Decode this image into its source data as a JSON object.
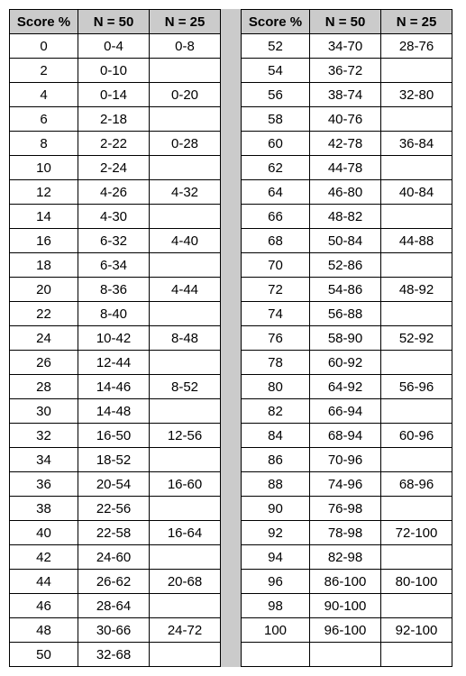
{
  "headers": {
    "score": "Score %",
    "n50": "N = 50",
    "n25": "N = 25"
  },
  "left": [
    {
      "s": "0",
      "a": "0-4",
      "b": "0-8"
    },
    {
      "s": "2",
      "a": "0-10",
      "b": ""
    },
    {
      "s": "4",
      "a": "0-14",
      "b": "0-20"
    },
    {
      "s": "6",
      "a": "2-18",
      "b": ""
    },
    {
      "s": "8",
      "a": "2-22",
      "b": "0-28"
    },
    {
      "s": "10",
      "a": "2-24",
      "b": ""
    },
    {
      "s": "12",
      "a": "4-26",
      "b": "4-32"
    },
    {
      "s": "14",
      "a": "4-30",
      "b": ""
    },
    {
      "s": "16",
      "a": "6-32",
      "b": "4-40"
    },
    {
      "s": "18",
      "a": "6-34",
      "b": ""
    },
    {
      "s": "20",
      "a": "8-36",
      "b": "4-44"
    },
    {
      "s": "22",
      "a": "8-40",
      "b": ""
    },
    {
      "s": "24",
      "a": "10-42",
      "b": "8-48"
    },
    {
      "s": "26",
      "a": "12-44",
      "b": ""
    },
    {
      "s": "28",
      "a": "14-46",
      "b": "8-52"
    },
    {
      "s": "30",
      "a": "14-48",
      "b": ""
    },
    {
      "s": "32",
      "a": "16-50",
      "b": "12-56"
    },
    {
      "s": "34",
      "a": "18-52",
      "b": ""
    },
    {
      "s": "36",
      "a": "20-54",
      "b": "16-60"
    },
    {
      "s": "38",
      "a": "22-56",
      "b": ""
    },
    {
      "s": "40",
      "a": "22-58",
      "b": "16-64"
    },
    {
      "s": "42",
      "a": "24-60",
      "b": ""
    },
    {
      "s": "44",
      "a": "26-62",
      "b": "20-68"
    },
    {
      "s": "46",
      "a": "28-64",
      "b": ""
    },
    {
      "s": "48",
      "a": "30-66",
      "b": "24-72"
    },
    {
      "s": "50",
      "a": "32-68",
      "b": ""
    }
  ],
  "right": [
    {
      "s": "52",
      "a": "34-70",
      "b": "28-76"
    },
    {
      "s": "54",
      "a": "36-72",
      "b": ""
    },
    {
      "s": "56",
      "a": "38-74",
      "b": "32-80"
    },
    {
      "s": "58",
      "a": "40-76",
      "b": ""
    },
    {
      "s": "60",
      "a": "42-78",
      "b": "36-84"
    },
    {
      "s": "62",
      "a": "44-78",
      "b": ""
    },
    {
      "s": "64",
      "a": "46-80",
      "b": "40-84"
    },
    {
      "s": "66",
      "a": "48-82",
      "b": ""
    },
    {
      "s": "68",
      "a": "50-84",
      "b": "44-88"
    },
    {
      "s": "70",
      "a": "52-86",
      "b": ""
    },
    {
      "s": "72",
      "a": "54-86",
      "b": "48-92"
    },
    {
      "s": "74",
      "a": "56-88",
      "b": ""
    },
    {
      "s": "76",
      "a": "58-90",
      "b": "52-92"
    },
    {
      "s": "78",
      "a": "60-92",
      "b": ""
    },
    {
      "s": "80",
      "a": "64-92",
      "b": "56-96"
    },
    {
      "s": "82",
      "a": "66-94",
      "b": ""
    },
    {
      "s": "84",
      "a": "68-94",
      "b": "60-96"
    },
    {
      "s": "86",
      "a": "70-96",
      "b": ""
    },
    {
      "s": "88",
      "a": "74-96",
      "b": "68-96"
    },
    {
      "s": "90",
      "a": "76-98",
      "b": ""
    },
    {
      "s": "92",
      "a": "78-98",
      "b": "72-100"
    },
    {
      "s": "94",
      "a": "82-98",
      "b": ""
    },
    {
      "s": "96",
      "a": "86-100",
      "b": "80-100"
    },
    {
      "s": "98",
      "a": "90-100",
      "b": ""
    },
    {
      "s": "100",
      "a": "96-100",
      "b": "92-100"
    },
    {
      "s": "",
      "a": "",
      "b": ""
    }
  ]
}
